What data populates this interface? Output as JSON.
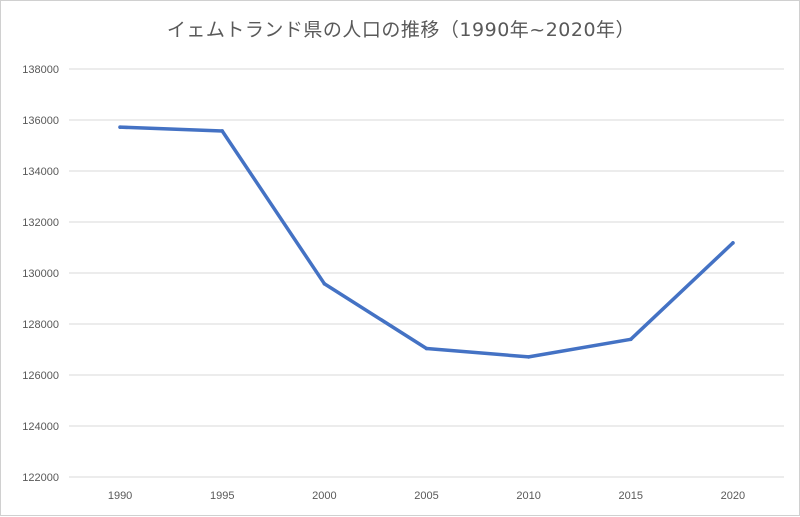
{
  "chart_data": {
    "type": "line",
    "title": "イェムトランド県の人口の推移（1990年~2020年）",
    "xlabel": "",
    "ylabel": "",
    "categories": [
      "1990",
      "1995",
      "2000",
      "2005",
      "2010",
      "2015",
      "2020"
    ],
    "series": [
      {
        "values": [
          135720,
          135570,
          129580,
          127040,
          126710,
          127400,
          131180
        ],
        "color": "#4472c4"
      }
    ],
    "ylim": [
      122000,
      138000
    ],
    "yticks": [
      "122000",
      "124000",
      "126000",
      "128000",
      "130000",
      "132000",
      "134000",
      "136000",
      "138000"
    ],
    "grid": true,
    "legend": "none"
  }
}
